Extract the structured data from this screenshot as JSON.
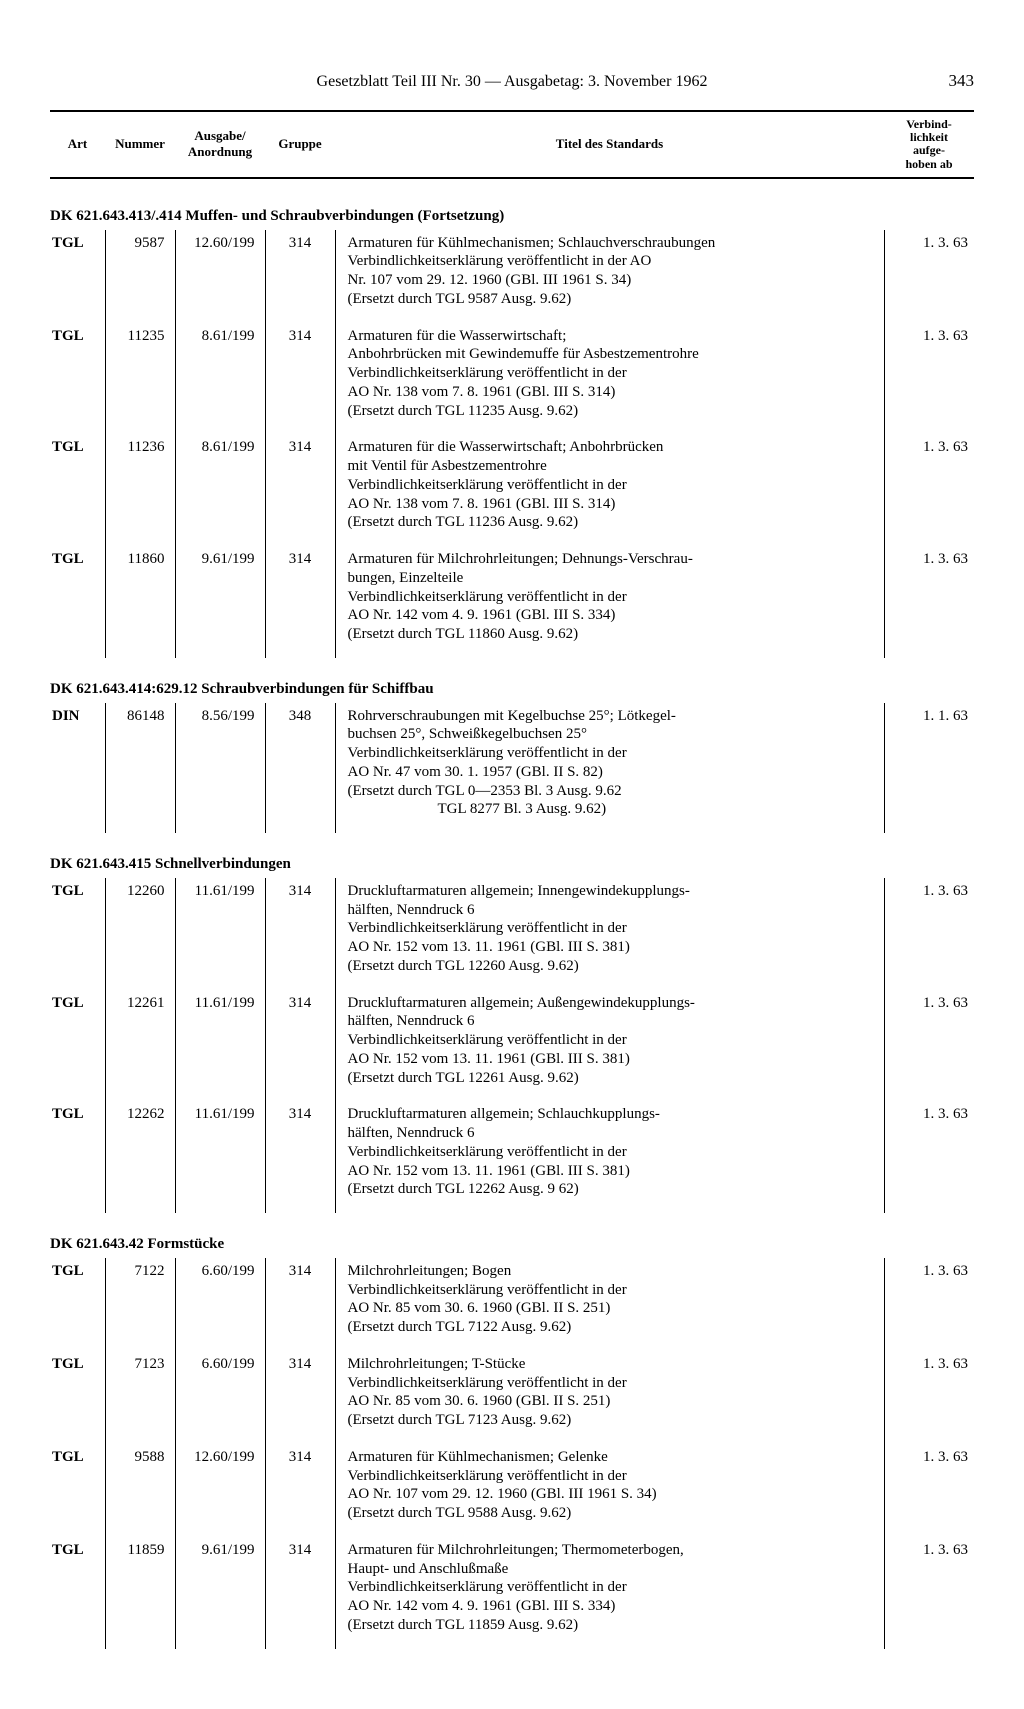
{
  "header": {
    "title": "Gesetzblatt Teil III Nr. 30 — Ausgabetag: 3. November 1962",
    "page": "343"
  },
  "columns": {
    "art": "Art",
    "nummer": "Nummer",
    "ausgabe": "Ausgabe/\nAnordnung",
    "gruppe": "Gruppe",
    "titel": "Titel des Standards",
    "verbind": "Verbind-\nlichkeit\naufge-\nhoben ab"
  },
  "sections": [
    {
      "heading": "DK 621.643.413/.414 Muffen- und Schraubverbindungen (Fortsetzung)",
      "rows": [
        {
          "art": "TGL",
          "nummer": "9587",
          "ausgabe": "12.60/199",
          "gruppe": "314",
          "title_lines": [
            "Armaturen für Kühlmechanismen; Schlauchverschraubungen",
            "Verbindlichkeitserklärung veröffentlicht in der AO",
            "Nr. 107 vom 29. 12. 1960 (GBl. III 1961 S. 34)",
            "(Ersetzt durch TGL 9587 Ausg. 9.62)"
          ],
          "date": "1. 3. 63"
        },
        {
          "art": "TGL",
          "nummer": "11235",
          "ausgabe": "8.61/199",
          "gruppe": "314",
          "title_lines": [
            "Armaturen für die Wasserwirtschaft;",
            "Anbohrbrücken mit Gewindemuffe für Asbestzementrohre",
            "Verbindlichkeitserklärung veröffentlicht in der",
            "AO Nr. 138 vom 7. 8. 1961 (GBl. III S. 314)",
            "(Ersetzt durch TGL 11235 Ausg. 9.62)"
          ],
          "date": "1. 3. 63"
        },
        {
          "art": "TGL",
          "nummer": "11236",
          "ausgabe": "8.61/199",
          "gruppe": "314",
          "title_lines": [
            "Armaturen für die Wasserwirtschaft; Anbohrbrücken",
            "mit Ventil für Asbestzementrohre",
            "Verbindlichkeitserklärung veröffentlicht in der",
            "AO Nr. 138 vom 7. 8. 1961 (GBl. III S. 314)",
            "(Ersetzt durch TGL 11236 Ausg. 9.62)"
          ],
          "date": "1. 3. 63"
        },
        {
          "art": "TGL",
          "nummer": "11860",
          "ausgabe": "9.61/199",
          "gruppe": "314",
          "title_lines": [
            "Armaturen für Milchrohrleitungen; Dehnungs-Verschrau-",
            "bungen, Einzelteile",
            "Verbindlichkeitserklärung veröffentlicht in der",
            "AO Nr. 142 vom 4. 9. 1961 (GBl. III S. 334)",
            "(Ersetzt durch TGL 11860 Ausg. 9.62)"
          ],
          "date": "1. 3. 63"
        }
      ]
    },
    {
      "heading": "DK 621.643.414:629.12 Schraubverbindungen für Schiffbau",
      "rows": [
        {
          "art": "DIN",
          "nummer": "86148",
          "ausgabe": "8.56/199",
          "gruppe": "348",
          "title_lines": [
            "Rohrverschraubungen mit Kegelbuchse 25°; Lötkegel-",
            "buchsen 25°, Schweißkegelbuchsen 25°",
            "Verbindlichkeitserklärung veröffentlicht in der",
            "AO Nr. 47 vom 30. 1. 1957 (GBl. II S. 82)",
            "(Ersetzt durch TGL 0—2353 Bl. 3 Ausg. 9.62",
            "                        TGL 8277 Bl. 3 Ausg. 9.62)"
          ],
          "date": "1. 1. 63"
        }
      ]
    },
    {
      "heading": "DK 621.643.415 Schnellverbindungen",
      "rows": [
        {
          "art": "TGL",
          "nummer": "12260",
          "ausgabe": "11.61/199",
          "gruppe": "314",
          "title_lines": [
            "Druckluftarmaturen allgemein; Innengewindekupplungs-",
            "hälften, Nenndruck 6",
            "Verbindlichkeitserklärung veröffentlicht in der",
            "AO Nr. 152 vom 13. 11. 1961 (GBl. III S. 381)",
            "(Ersetzt durch TGL 12260 Ausg. 9.62)"
          ],
          "date": "1. 3. 63"
        },
        {
          "art": "TGL",
          "nummer": "12261",
          "ausgabe": "11.61/199",
          "gruppe": "314",
          "title_lines": [
            "Druckluftarmaturen allgemein; Außengewindekupplungs-",
            "hälften, Nenndruck 6",
            "Verbindlichkeitserklärung veröffentlicht in der",
            "AO Nr. 152 vom 13. 11. 1961 (GBl. III S. 381)",
            "(Ersetzt durch TGL 12261 Ausg. 9.62)"
          ],
          "date": "1. 3. 63"
        },
        {
          "art": "TGL",
          "nummer": "12262",
          "ausgabe": "11.61/199",
          "gruppe": "314",
          "title_lines": [
            "Druckluftarmaturen allgemein; Schlauchkupplungs-",
            "hälften, Nenndruck 6",
            "Verbindlichkeitserklärung veröffentlicht in der",
            "AO Nr. 152 vom 13. 11. 1961 (GBl. III S. 381)",
            "(Ersetzt durch TGL 12262 Ausg. 9 62)"
          ],
          "date": "1. 3. 63"
        }
      ]
    },
    {
      "heading": "DK 621.643.42 Formstücke",
      "rows": [
        {
          "art": "TGL",
          "nummer": "7122",
          "ausgabe": "6.60/199",
          "gruppe": "314",
          "title_lines": [
            "Milchrohrleitungen; Bogen",
            "Verbindlichkeitserklärung veröffentlicht in der",
            "AO Nr. 85 vom 30. 6. 1960 (GBl. II S. 251)",
            "(Ersetzt durch TGL 7122 Ausg. 9.62)"
          ],
          "date": "1. 3. 63"
        },
        {
          "art": "TGL",
          "nummer": "7123",
          "ausgabe": "6.60/199",
          "gruppe": "314",
          "title_lines": [
            "Milchrohrleitungen; T-Stücke",
            "Verbindlichkeitserklärung veröffentlicht in der",
            "AO Nr. 85 vom 30. 6. 1960 (GBl. II S. 251)",
            "(Ersetzt durch TGL 7123 Ausg. 9.62)"
          ],
          "date": "1. 3. 63"
        },
        {
          "art": "TGL",
          "nummer": "9588",
          "ausgabe": "12.60/199",
          "gruppe": "314",
          "title_lines": [
            "Armaturen für Kühlmechanismen; Gelenke",
            "Verbindlichkeitserklärung veröffentlicht in der",
            "AO Nr. 107 vom 29. 12. 1960 (GBl. III 1961 S. 34)",
            "(Ersetzt durch TGL 9588 Ausg. 9.62)"
          ],
          "date": "1. 3. 63"
        },
        {
          "art": "TGL",
          "nummer": "11859",
          "ausgabe": "9.61/199",
          "gruppe": "314",
          "title_lines": [
            "Armaturen für Milchrohrleitungen; Thermometerbogen,",
            "Haupt- und Anschlußmaße",
            "Verbindlichkeitserklärung veröffentlicht in der",
            "AO Nr. 142 vom 4. 9. 1961 (GBl. III S. 334)",
            "(Ersetzt durch TGL 11859 Ausg. 9.62)"
          ],
          "date": "1. 3. 63"
        }
      ]
    }
  ]
}
